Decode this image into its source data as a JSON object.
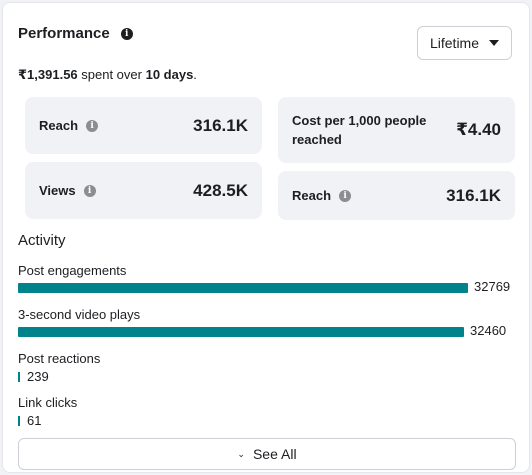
{
  "header": {
    "title": "Performance",
    "info_icon": "info-icon",
    "range_selected": "Lifetime"
  },
  "spend": {
    "amount": "₹1,391.56",
    "middle": " spent over ",
    "days": "10 days",
    "end": "."
  },
  "cards": [
    {
      "label": "Reach",
      "value": "316.1K"
    },
    {
      "label": "Cost per 1,000 people reached",
      "value": "₹4.40"
    },
    {
      "label": "Views",
      "value": "428.5K"
    },
    {
      "label": "Reach",
      "value": "316.1K"
    }
  ],
  "activity": {
    "title": "Activity",
    "max_value": 32769,
    "metrics": [
      {
        "label": "Post engagements",
        "value": 32769
      },
      {
        "label": "3-second video plays",
        "value": 32460
      },
      {
        "label": "Post reactions",
        "value": 239
      },
      {
        "label": "Link clicks",
        "value": 61
      }
    ]
  },
  "footer": {
    "see_all": "See All"
  },
  "colors": {
    "bar": "#00838a",
    "card_bg": "#f0f2f5"
  }
}
